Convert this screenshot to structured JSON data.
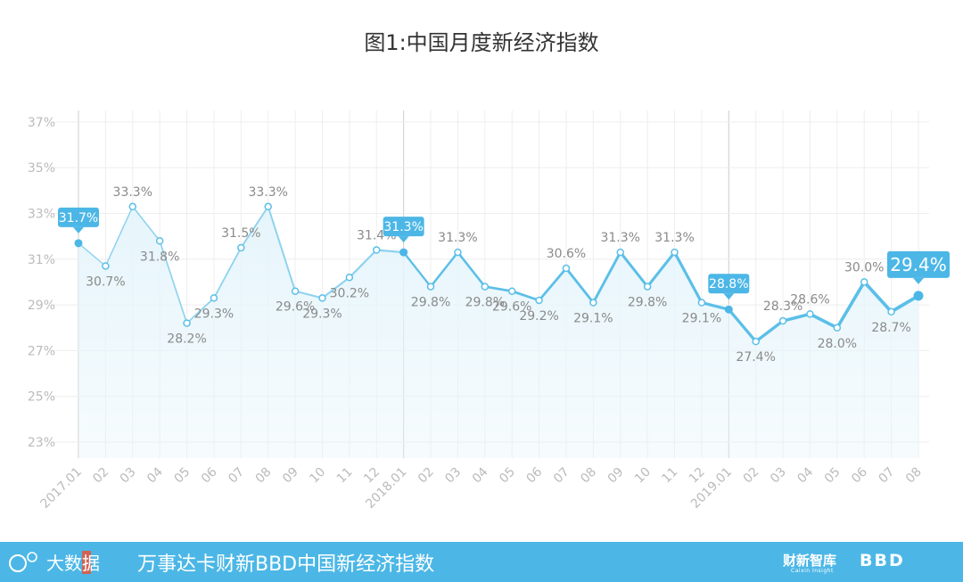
{
  "title": "图1:中国月度新经济指数",
  "chart_data": {
    "type": "line",
    "title": "图1:中国月度新经济指数",
    "xlabel": "",
    "ylabel": "",
    "categories": [
      "2017.01",
      "02",
      "03",
      "04",
      "05",
      "06",
      "07",
      "08",
      "09",
      "10",
      "11",
      "12",
      "2018.01",
      "02",
      "03",
      "04",
      "05",
      "06",
      "07",
      "08",
      "09",
      "10",
      "11",
      "12",
      "2019.01",
      "02",
      "03",
      "04",
      "05",
      "06",
      "07",
      "08"
    ],
    "values": [
      31.7,
      30.7,
      33.3,
      31.8,
      28.2,
      29.3,
      31.5,
      33.3,
      29.6,
      29.3,
      30.2,
      31.4,
      31.3,
      29.8,
      31.3,
      29.8,
      29.6,
      29.2,
      30.6,
      29.1,
      31.3,
      29.8,
      31.3,
      29.1,
      28.8,
      27.4,
      28.3,
      28.6,
      28.0,
      30.0,
      28.7,
      29.4
    ],
    "data_labels": [
      "31.7%",
      "30.7%",
      "33.3%",
      "31.8%",
      "28.2%",
      "29.3%",
      "31.5%",
      "33.3%",
      "29.6%",
      "29.3%",
      "30.2%",
      "31.4%",
      "31.3%",
      "29.8%",
      "31.3%",
      "29.8%",
      "29.6%",
      "29.2%",
      "30.6%",
      "29.1%",
      "31.3%",
      "29.8%",
      "31.3%",
      "29.1%",
      "28.8%",
      "27.4%",
      "28.3%",
      "28.6%",
      "28.0%",
      "30.0%",
      "28.7%",
      "29.4%"
    ],
    "highlighted_indices": [
      0,
      12,
      24,
      31
    ],
    "yticks": [
      "23%",
      "25%",
      "27%",
      "29%",
      "31%",
      "33%",
      "35%",
      "37%"
    ],
    "ytick_values": [
      23,
      25,
      27,
      29,
      31,
      33,
      35,
      37
    ],
    "ylim": [
      22.3,
      37.5
    ],
    "grid": true,
    "colors": {
      "line": "#5bbfe8",
      "line_light": "#8dd2ef",
      "area": "#e6f5fb",
      "callout": "#4cb7e6",
      "label": "#8a8a8a",
      "axis_text": "#bbbbbb",
      "grid": "#eeeeee",
      "year_divider": "#cccccc"
    }
  },
  "footer": {
    "logo_text": "大数据",
    "caption": "万事达卡财新BBD中国新经济指数",
    "brand1": "财新智库",
    "brand1_sub": "Caixin Insight",
    "brand2": "BBD",
    "background": "#4cb7e6"
  }
}
